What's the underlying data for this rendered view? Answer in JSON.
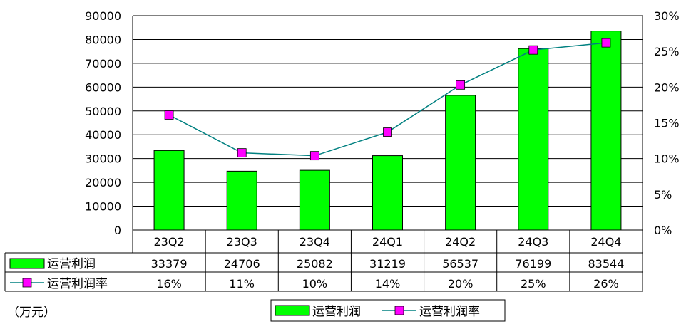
{
  "chart_data": {
    "type": "bar",
    "categories": [
      "23Q2",
      "23Q3",
      "23Q4",
      "24Q1",
      "24Q2",
      "24Q3",
      "24Q4"
    ],
    "series": [
      {
        "name": "运营利润",
        "type": "bar",
        "axis": "left",
        "color": "#00ff00",
        "values": [
          33379,
          24706,
          25082,
          31219,
          56537,
          76199,
          83544
        ],
        "table_labels": [
          "33379",
          "24706",
          "25082",
          "31219",
          "56537",
          "76199",
          "83544"
        ]
      },
      {
        "name": "运营利润率",
        "type": "line",
        "axis": "right",
        "color": "#008080",
        "marker_color": "#ff00ff",
        "values": [
          16.1,
          10.8,
          10.4,
          13.7,
          20.3,
          25.2,
          26.2
        ],
        "table_labels": [
          "16%",
          "11%",
          "10%",
          "14%",
          "20%",
          "25%",
          "26%"
        ]
      }
    ],
    "left_axis": {
      "min": 0,
      "max": 90000,
      "step": 10000,
      "ticks": [
        "0",
        "10000",
        "20000",
        "30000",
        "40000",
        "50000",
        "60000",
        "70000",
        "80000",
        "90000"
      ]
    },
    "right_axis": {
      "min": 0,
      "max": 30,
      "step": 5,
      "ticks": [
        "0%",
        "5%",
        "10%",
        "15%",
        "20%",
        "25%",
        "30%"
      ]
    },
    "unit_label": "（万元）",
    "legend": {
      "placement": "bottom-right",
      "items": [
        "运营利润",
        "运营利润率"
      ]
    },
    "grid": true
  }
}
